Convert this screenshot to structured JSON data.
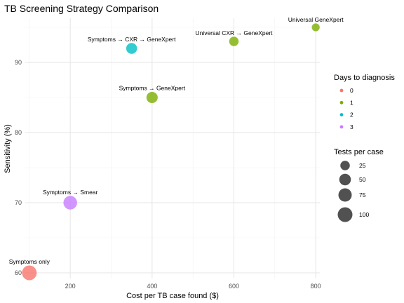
{
  "chart_data": {
    "type": "scatter",
    "title": "TB Screening Strategy Comparison",
    "xlabel": "Cost per TB case found ($)",
    "ylabel": "Sensitivity (%)",
    "xlim": [
      90,
      810
    ],
    "ylim": [
      59.2,
      96.3
    ],
    "x_ticks": [
      200,
      400,
      600,
      800
    ],
    "y_ticks": [
      60,
      70,
      80,
      90
    ],
    "grid": true,
    "colors": {
      "0": "#F8766D",
      "1": "#7CAE00",
      "2": "#00BFC4",
      "3": "#C77CFF"
    },
    "points": [
      {
        "label": "Symptoms only",
        "x": 100,
        "y": 60,
        "days": "0",
        "tests": 100
      },
      {
        "label": "Symptoms → Smear",
        "x": 200,
        "y": 70,
        "days": "3",
        "tests": 80
      },
      {
        "label": "Symptoms → GeneXpert",
        "x": 400,
        "y": 85,
        "days": "1",
        "tests": 45
      },
      {
        "label": "Symptoms → CXR → GeneXpert",
        "x": 350,
        "y": 92,
        "days": "2",
        "tests": 40
      },
      {
        "label": "Universal CXR → GeneXpert",
        "x": 600,
        "y": 93,
        "days": "1",
        "tests": 25
      },
      {
        "label": "Universal GeneXpert",
        "x": 800,
        "y": 95,
        "days": "1",
        "tests": 12
      }
    ],
    "legend": {
      "position": "right",
      "color_title": "Days to diagnosis",
      "color_items": [
        {
          "label": "0",
          "key": "0"
        },
        {
          "label": "1",
          "key": "1"
        },
        {
          "label": "2",
          "key": "2"
        },
        {
          "label": "3",
          "key": "3"
        }
      ],
      "size_title": "Tests per case",
      "size_items": [
        {
          "label": "25",
          "value": 25
        },
        {
          "label": "50",
          "value": 50
        },
        {
          "label": "75",
          "value": 75
        },
        {
          "label": "100",
          "value": 100
        }
      ]
    }
  }
}
